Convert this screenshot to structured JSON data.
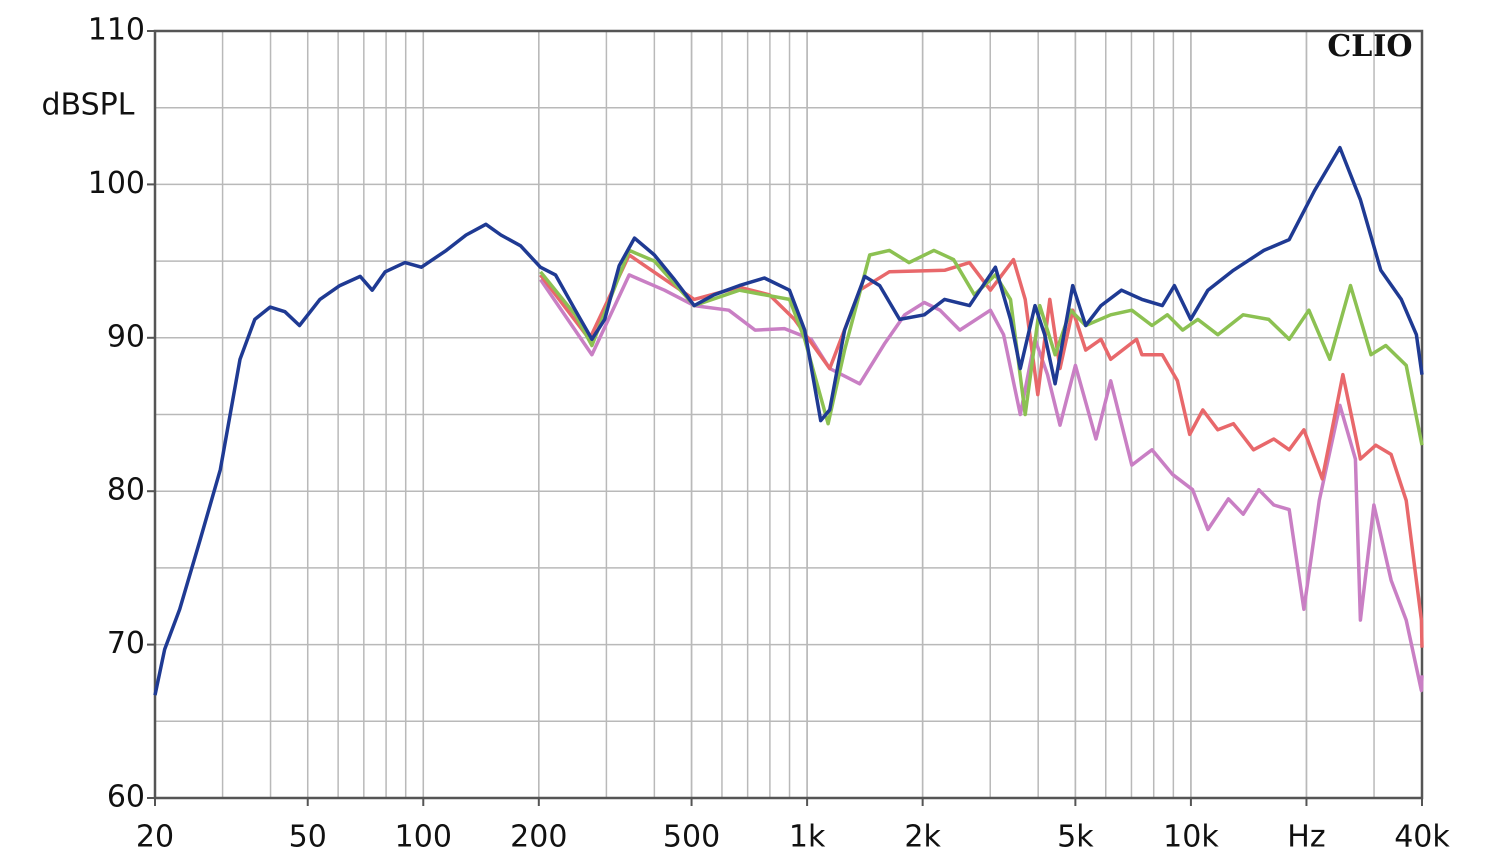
{
  "chart_data": {
    "type": "line",
    "ylabel": "dBSPL",
    "annotation": "CLIO",
    "xscale": "log",
    "grid": true,
    "minor_grid": true,
    "xlim": [
      20,
      40000
    ],
    "ylim": [
      60,
      110
    ],
    "xticks": [
      20,
      50,
      100,
      200,
      500,
      {
        "value": 1000,
        "label": "1k"
      },
      {
        "value": 2000,
        "label": "2k"
      },
      {
        "value": 5000,
        "label": "5k"
      },
      {
        "value": 10000,
        "label": "10k"
      },
      {
        "value": 20000,
        "label": "Hz"
      },
      {
        "value": 40000,
        "label": "40k"
      }
    ],
    "yticks": [
      60,
      70,
      80,
      90,
      100,
      110
    ],
    "series": [
      {
        "color": "#c97fc4",
        "x": [
          202,
          275,
          344,
          425,
          508,
          625,
          732,
          873,
          1025,
          1145,
          1371,
          1590,
          1796,
          2020,
          2220,
          2500,
          3004,
          3250,
          3594,
          3925,
          4230,
          4560,
          5000,
          5660,
          6180,
          7015,
          7920,
          8950,
          10100,
          11070,
          12520,
          13680,
          15030,
          16440,
          18035,
          19700,
          21600,
          24450,
          26830,
          27640,
          29970,
          33240,
          36390,
          39850,
          40000
        ],
        "values": [
          93.8,
          88.9,
          94.1,
          93.1,
          92.1,
          91.8,
          90.5,
          90.6,
          89.9,
          88.0,
          87.0,
          89.6,
          91.5,
          92.3,
          91.8,
          90.5,
          91.8,
          90.2,
          85.0,
          89.9,
          87.6,
          84.3,
          88.2,
          83.4,
          87.2,
          81.7,
          82.7,
          81.1,
          80.1,
          77.5,
          79.5,
          78.5,
          80.1,
          79.1,
          78.8,
          72.3,
          79.4,
          85.6,
          82.1,
          71.6,
          79.1,
          74.2,
          71.6,
          67.0,
          68.0
        ]
      },
      {
        "color": "#e8686b",
        "x": [
          202,
          271,
          344,
          508,
          666,
          797,
          927,
          1145,
          1371,
          1637,
          2281,
          2650,
          3004,
          3450,
          3700,
          3990,
          4290,
          4560,
          4919,
          5320,
          5832,
          6180,
          7220,
          7453,
          8425,
          9220,
          9930,
          10740,
          11750,
          12905,
          14560,
          16440,
          18035,
          19700,
          22000,
          24890,
          27640,
          30320,
          33240,
          36390,
          39850,
          40000
        ],
        "values": [
          94.1,
          89.9,
          95.4,
          92.5,
          93.3,
          92.8,
          91.2,
          88.0,
          93.1,
          94.3,
          94.4,
          94.9,
          93.1,
          95.1,
          92.5,
          86.3,
          92.5,
          88.0,
          91.8,
          89.2,
          89.9,
          88.6,
          89.9,
          88.9,
          88.9,
          87.2,
          83.7,
          85.3,
          84.0,
          84.4,
          82.7,
          83.4,
          82.7,
          84.0,
          80.8,
          87.6,
          82.1,
          83.0,
          82.4,
          79.4,
          71.6,
          69.8
        ]
      },
      {
        "color": "#8cc152",
        "x": [
          202,
          249,
          275,
          344,
          400,
          508,
          666,
          900,
          986,
          1134,
          1252,
          1456,
          1637,
          1844,
          2140,
          2408,
          2729,
          3094,
          3389,
          3700,
          4040,
          4427,
          4860,
          5320,
          6180,
          7015,
          7920,
          8680,
          9520,
          10420,
          11750,
          13680,
          15950,
          18035,
          20300,
          23000,
          26050,
          29450,
          32200,
          36390,
          40000
        ],
        "values": [
          94.3,
          91.5,
          89.5,
          95.7,
          95.0,
          92.1,
          93.1,
          92.5,
          89.9,
          84.4,
          89.2,
          95.4,
          95.7,
          94.9,
          95.7,
          95.1,
          92.8,
          94.1,
          92.5,
          85.0,
          92.1,
          88.9,
          91.8,
          90.8,
          91.5,
          91.8,
          90.8,
          91.5,
          90.5,
          91.2,
          90.2,
          91.5,
          91.2,
          89.9,
          91.8,
          88.6,
          93.4,
          88.9,
          89.5,
          88.2,
          83.0
        ]
      },
      {
        "color": "#1f3a93",
        "x": [
          20,
          21.2,
          23.2,
          26.2,
          29.6,
          33.3,
          36.4,
          39.9,
          43.6,
          47.6,
          53.8,
          60.6,
          68.5,
          73.6,
          79.6,
          89.6,
          98.9,
          114.8,
          129.3,
          145.6,
          159.3,
          179.3,
          201.9,
          221,
          249,
          275,
          297,
          324,
          355,
          400,
          451,
          508,
          572,
          666,
          774,
          900,
          986,
          1085,
          1145,
          1252,
          1413,
          1546,
          1742,
          2020,
          2281,
          2650,
          3094,
          3389,
          3594,
          3925,
          4160,
          4427,
          4919,
          5320,
          5832,
          6593,
          7453,
          8425,
          9057,
          9985,
          11070,
          12905,
          15493,
          18035,
          20999,
          24447,
          27639,
          31249,
          35330,
          38690,
          40000
        ],
        "values": [
          66.7,
          69.7,
          72.3,
          76.8,
          81.4,
          88.6,
          91.2,
          92.0,
          91.7,
          90.8,
          92.5,
          93.4,
          94.0,
          93.1,
          94.3,
          94.9,
          94.6,
          95.7,
          96.7,
          97.4,
          96.7,
          96.0,
          94.6,
          94.1,
          91.8,
          89.9,
          91.2,
          94.7,
          96.5,
          95.4,
          93.8,
          92.1,
          92.8,
          93.4,
          93.9,
          93.1,
          90.5,
          84.6,
          85.3,
          90.5,
          94.0,
          93.4,
          91.2,
          91.5,
          92.5,
          92.1,
          94.6,
          91.2,
          88.0,
          92.1,
          90.2,
          87.0,
          93.4,
          90.8,
          92.1,
          93.1,
          92.5,
          92.1,
          93.4,
          91.2,
          93.1,
          94.4,
          95.7,
          96.4,
          99.6,
          102.4,
          99.0,
          94.4,
          92.5,
          90.2,
          87.6
        ]
      }
    ]
  }
}
